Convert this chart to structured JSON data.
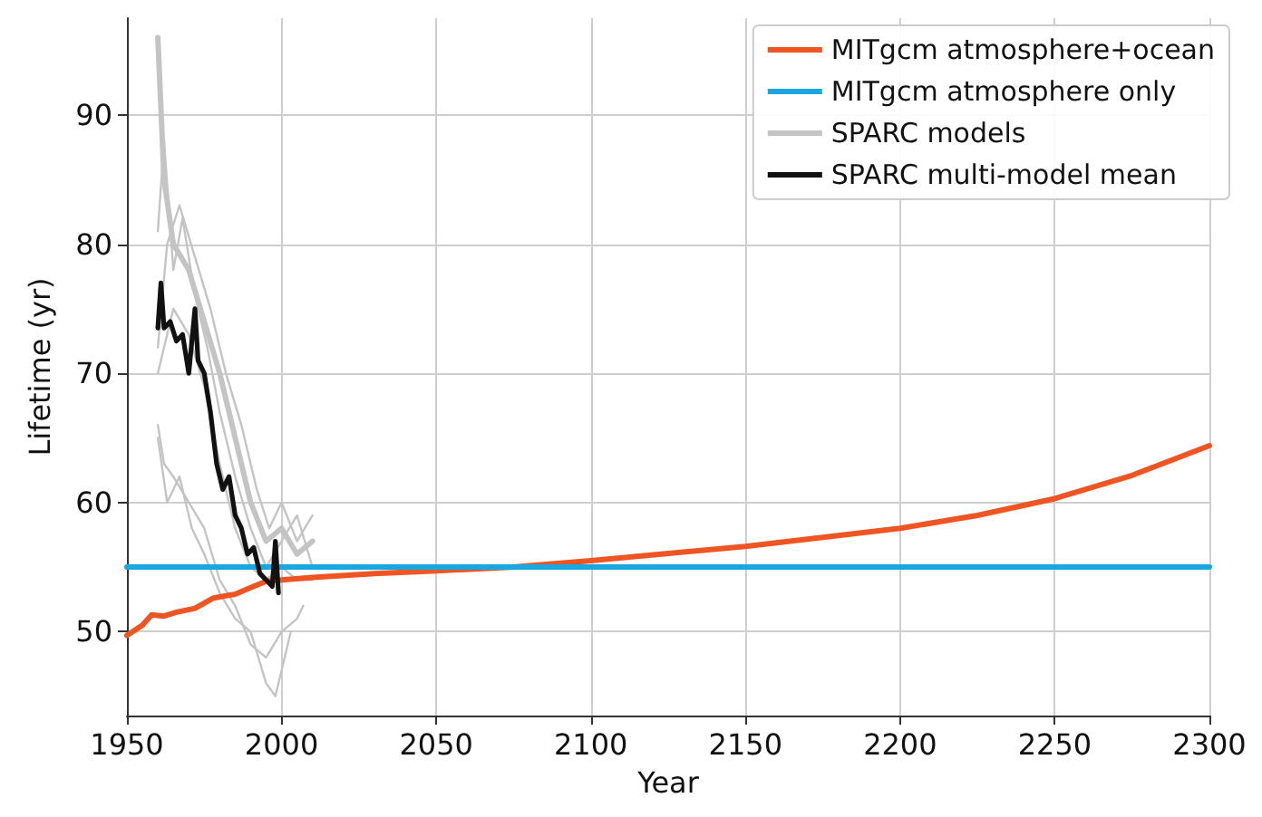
{
  "chart_data": {
    "type": "line",
    "xlabel": "Year",
    "ylabel": "Lifetime (yr)",
    "xlim": [
      1950,
      2300
    ],
    "xticks": [
      1950,
      2000,
      2050,
      2100,
      2150,
      2200,
      2250,
      2300
    ],
    "ylim": [
      43.5,
      97.5
    ],
    "yticks": [
      50,
      60,
      70,
      80,
      90
    ],
    "grid": true,
    "legend": "top right",
    "marker": "none",
    "line_style": "solid",
    "series": [
      {
        "name": "MITgcm atmosphere+ocean",
        "color": "#ee5522",
        "x": [
          1950,
          1955,
          1958,
          1962,
          1966,
          1972,
          1978,
          1985,
          1990,
          1995,
          2000,
          2010,
          2030,
          2050,
          2075,
          2100,
          2150,
          2200,
          2225,
          2250,
          2275,
          2300
        ],
        "values": [
          49.7,
          50.5,
          51.3,
          51.2,
          51.5,
          51.8,
          52.6,
          52.9,
          53.4,
          53.9,
          54.0,
          54.2,
          54.5,
          54.7,
          55.0,
          55.5,
          56.6,
          58.0,
          59.0,
          60.3,
          62.1,
          64.4
        ]
      },
      {
        "name": "MITgcm atmosphere only",
        "color": "#1aa7e0",
        "x": [
          1950,
          2300
        ],
        "values": [
          55,
          55
        ]
      },
      {
        "name": "SPARC models",
        "color": "#c4c4c4",
        "x": [
          1960,
          1962,
          1965,
          1970,
          1975,
          1980,
          1985,
          1990,
          1995,
          2000,
          2005,
          2010
        ],
        "values": [
          96,
          85,
          80,
          78,
          74,
          70,
          65,
          60,
          57,
          58,
          56,
          57
        ]
      },
      {
        "color": "#c4c4c4",
        "x": [
          1960,
          1962,
          1965,
          1968,
          1972,
          1976,
          1980,
          1985,
          1990,
          1995,
          2000,
          2005,
          2010
        ],
        "values": [
          81,
          88,
          78,
          82,
          76,
          72,
          67,
          62,
          58,
          55,
          57,
          59,
          55
        ]
      },
      {
        "color": "#c4c4c4",
        "x": [
          1960,
          1962,
          1965,
          1970,
          1975,
          1980,
          1985,
          1990,
          1995,
          2000,
          2005,
          2007
        ],
        "values": [
          66,
          63,
          62,
          60,
          58,
          54,
          52,
          49,
          48,
          50,
          51,
          52
        ]
      },
      {
        "color": "#c4c4c4",
        "x": [
          1960,
          1963,
          1967,
          1971,
          1975,
          1980,
          1985,
          1990,
          1995,
          1998,
          2000,
          2003
        ],
        "values": [
          65,
          60,
          62,
          58,
          56,
          53,
          51,
          50,
          46,
          45,
          47,
          50
        ]
      },
      {
        "color": "#c4c4c4",
        "x": [
          1960,
          1963,
          1967,
          1972,
          1977,
          1982,
          1987,
          1992,
          1996,
          2000,
          2005,
          2010
        ],
        "values": [
          72,
          80,
          83,
          79,
          75,
          70,
          66,
          61,
          58,
          60,
          57,
          59
        ]
      },
      {
        "color": "#c4c4c4",
        "x": [
          1960,
          1965,
          1970,
          1975,
          1980,
          1985,
          1990,
          1995,
          2000,
          2005,
          2010
        ],
        "values": [
          70,
          75,
          73,
          69,
          63,
          58,
          55,
          54,
          55,
          54,
          54
        ]
      },
      {
        "name": "SPARC multi-model mean",
        "color": "#111111",
        "x": [
          1960,
          1961,
          1962,
          1964,
          1966,
          1968,
          1970,
          1972,
          1973,
          1975,
          1977,
          1979,
          1981,
          1983,
          1985,
          1987,
          1989,
          1991,
          1993,
          1995,
          1997,
          1998,
          1999
        ],
        "values": [
          73.5,
          77,
          73.5,
          74,
          72.5,
          73,
          70,
          75,
          71,
          70,
          67,
          63,
          61,
          62,
          59,
          58,
          56,
          56.5,
          54.5,
          54,
          53.5,
          57,
          53
        ]
      }
    ]
  }
}
